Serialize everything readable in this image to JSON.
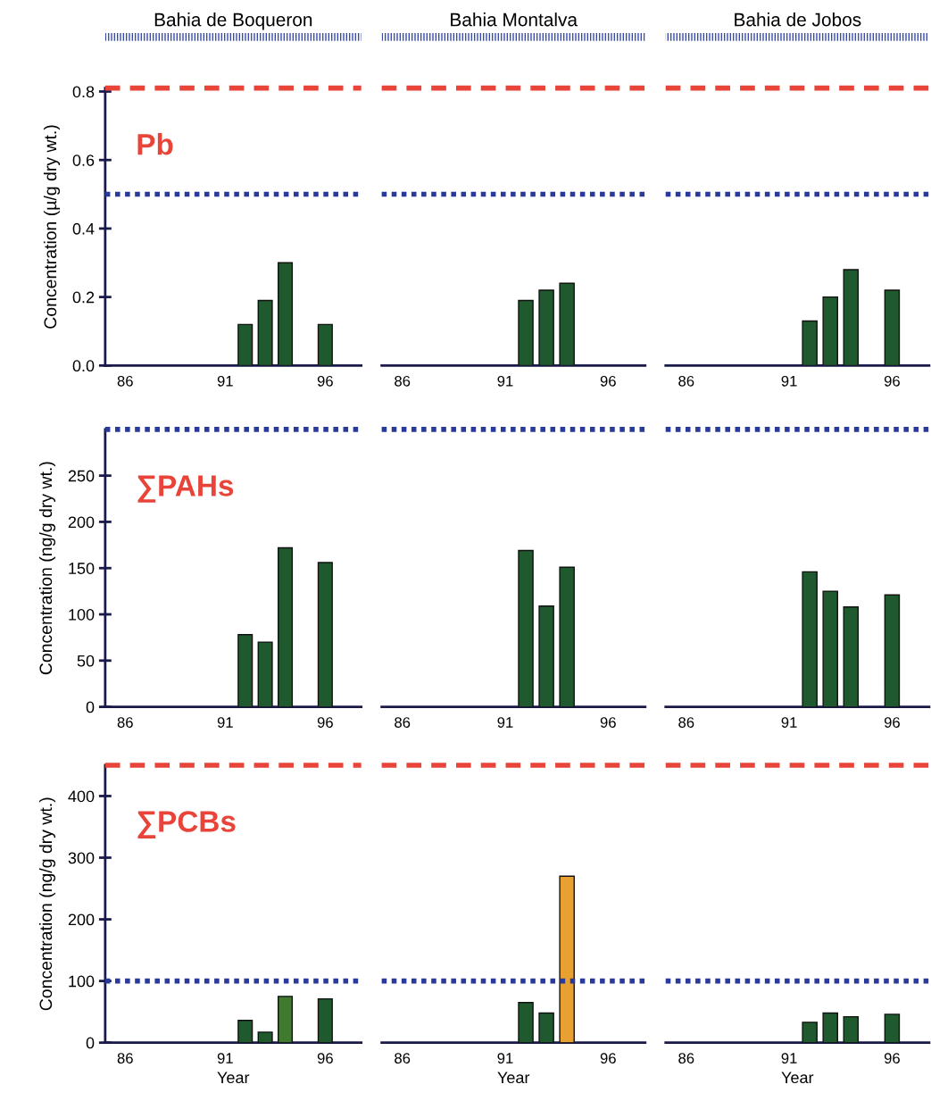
{
  "chart_data": [
    {
      "type": "bar",
      "title": "Bahia de Boqueron",
      "ylabel": "Concentration (µ/g dry wt.)",
      "annotations": [
        "Pb"
      ],
      "x": [
        92,
        93,
        94,
        96
      ],
      "values": [
        0.12,
        0.19,
        0.3,
        0.12
      ],
      "color": "#1f5a2e",
      "xlim": [
        85,
        97.8
      ],
      "xticks": [
        86,
        91,
        96
      ],
      "ylim": [
        0,
        0.81
      ],
      "yticks": [
        {
          "value": 0,
          "label": "0.0"
        },
        {
          "value": 0.2,
          "label": "0.2"
        },
        {
          "value": 0.4,
          "label": "0.4"
        },
        {
          "value": 0.6,
          "label": "0.6"
        },
        {
          "value": 0.8,
          "label": "0.8"
        }
      ],
      "ref_lines": [
        {
          "axis": "y",
          "value": 0.81,
          "color": "#e8443a",
          "line_style": "dashed"
        },
        {
          "axis": "y",
          "value": 0.5,
          "color": "#2a3a9a",
          "line_style": "dotted"
        }
      ],
      "grid": false
    },
    {
      "type": "bar",
      "title": "Bahia Montalva",
      "x": [
        92,
        93,
        94
      ],
      "values": [
        0.19,
        0.22,
        0.24
      ],
      "color": "#1f5a2e",
      "xlim": [
        85,
        97.8
      ],
      "xticks": [
        86,
        91,
        96
      ],
      "ylim": [
        0,
        0.81
      ],
      "tick_labels": "x",
      "ref_lines": [
        {
          "axis": "y",
          "value": 0.81,
          "color": "#e8443a",
          "line_style": "dashed"
        },
        {
          "axis": "y",
          "value": 0.5,
          "color": "#2a3a9a",
          "line_style": "dotted"
        }
      ],
      "grid": false
    },
    {
      "type": "bar",
      "title": "Bahia de Jobos",
      "x": [
        92,
        93,
        94,
        96
      ],
      "values": [
        0.13,
        0.2,
        0.28,
        0.22
      ],
      "color": "#1f5a2e",
      "xlim": [
        85,
        97.8
      ],
      "xticks": [
        86,
        91,
        96
      ],
      "ylim": [
        0,
        0.81
      ],
      "tick_labels": "x",
      "ref_lines": [
        {
          "axis": "y",
          "value": 0.81,
          "color": "#e8443a",
          "line_style": "dashed"
        },
        {
          "axis": "y",
          "value": 0.5,
          "color": "#2a3a9a",
          "line_style": "dotted"
        }
      ],
      "grid": false
    },
    {
      "type": "bar",
      "ylabel": "Concentration (ng/g dry wt.)",
      "annotations": [
        "∑PAHs"
      ],
      "x": [
        92,
        93,
        94,
        96
      ],
      "values": [
        78,
        70,
        172,
        156
      ],
      "color": "#1f5a2e",
      "xlim": [
        85,
        97.8
      ],
      "xticks": [
        86,
        91,
        96
      ],
      "ylim": [
        0,
        300
      ],
      "yticks": [
        0,
        50,
        100,
        150,
        200,
        250
      ],
      "ref_lines": [
        {
          "axis": "y",
          "value": 300,
          "color": "#2a3a9a",
          "line_style": "dotted"
        }
      ],
      "grid": false
    },
    {
      "type": "bar",
      "x": [
        92,
        93,
        94
      ],
      "values": [
        169,
        109,
        151
      ],
      "color": "#1f5a2e",
      "xlim": [
        85,
        97.8
      ],
      "xticks": [
        86,
        91,
        96
      ],
      "ylim": [
        0,
        300
      ],
      "tick_labels": "x",
      "ref_lines": [
        {
          "axis": "y",
          "value": 300,
          "color": "#2a3a9a",
          "line_style": "dotted"
        }
      ],
      "grid": false
    },
    {
      "type": "bar",
      "x": [
        92,
        93,
        94,
        96
      ],
      "values": [
        146,
        125,
        108,
        121
      ],
      "color": "#1f5a2e",
      "xlim": [
        85,
        97.8
      ],
      "xticks": [
        86,
        91,
        96
      ],
      "ylim": [
        0,
        300
      ],
      "tick_labels": "x",
      "ref_lines": [
        {
          "axis": "y",
          "value": 300,
          "color": "#2a3a9a",
          "line_style": "dotted"
        }
      ],
      "grid": false
    },
    {
      "type": "bar",
      "xlabel": "Year",
      "ylabel": "Concentration (ng/g dry wt.)",
      "annotations": [
        "∑PCBs"
      ],
      "x": [
        92,
        93,
        94,
        96
      ],
      "values": [
        36,
        17,
        75,
        71
      ],
      "colors": [
        "#1f5a2e",
        "#1f5a2e",
        "#3f7a2e",
        "#1f5a2e"
      ],
      "xlim": [
        85,
        97.8
      ],
      "xticks": [
        86,
        91,
        96
      ],
      "ylim": [
        0,
        450
      ],
      "yticks": [
        0,
        100,
        200,
        300,
        400
      ],
      "ref_lines": [
        {
          "axis": "y",
          "value": 450,
          "color": "#e8443a",
          "line_style": "dashed"
        },
        {
          "axis": "y",
          "value": 100,
          "color": "#2a3a9a",
          "line_style": "dotted"
        }
      ],
      "grid": false
    },
    {
      "type": "bar",
      "xlabel": "Year",
      "x": [
        92,
        93,
        94
      ],
      "values": [
        65,
        48,
        270
      ],
      "colors": [
        "#1f5a2e",
        "#1f5a2e",
        "#e8a030"
      ],
      "xlim": [
        85,
        97.8
      ],
      "xticks": [
        86,
        91,
        96
      ],
      "ylim": [
        0,
        450
      ],
      "tick_labels": "x",
      "ref_lines": [
        {
          "axis": "y",
          "value": 450,
          "color": "#e8443a",
          "line_style": "dashed"
        },
        {
          "axis": "y",
          "value": 100,
          "color": "#2a3a9a",
          "line_style": "dotted"
        }
      ],
      "grid": false
    },
    {
      "type": "bar",
      "xlabel": "Year",
      "x": [
        92,
        93,
        94,
        96
      ],
      "values": [
        33,
        48,
        42,
        46
      ],
      "color": "#1f5a2e",
      "xlim": [
        85,
        97.8
      ],
      "xticks": [
        86,
        91,
        96
      ],
      "ylim": [
        0,
        450
      ],
      "tick_labels": "x",
      "ref_lines": [
        {
          "axis": "y",
          "value": 450,
          "color": "#e8443a",
          "line_style": "dashed"
        },
        {
          "axis": "y",
          "value": 100,
          "color": "#2a3a9a",
          "line_style": "dotted"
        }
      ],
      "grid": false
    }
  ]
}
